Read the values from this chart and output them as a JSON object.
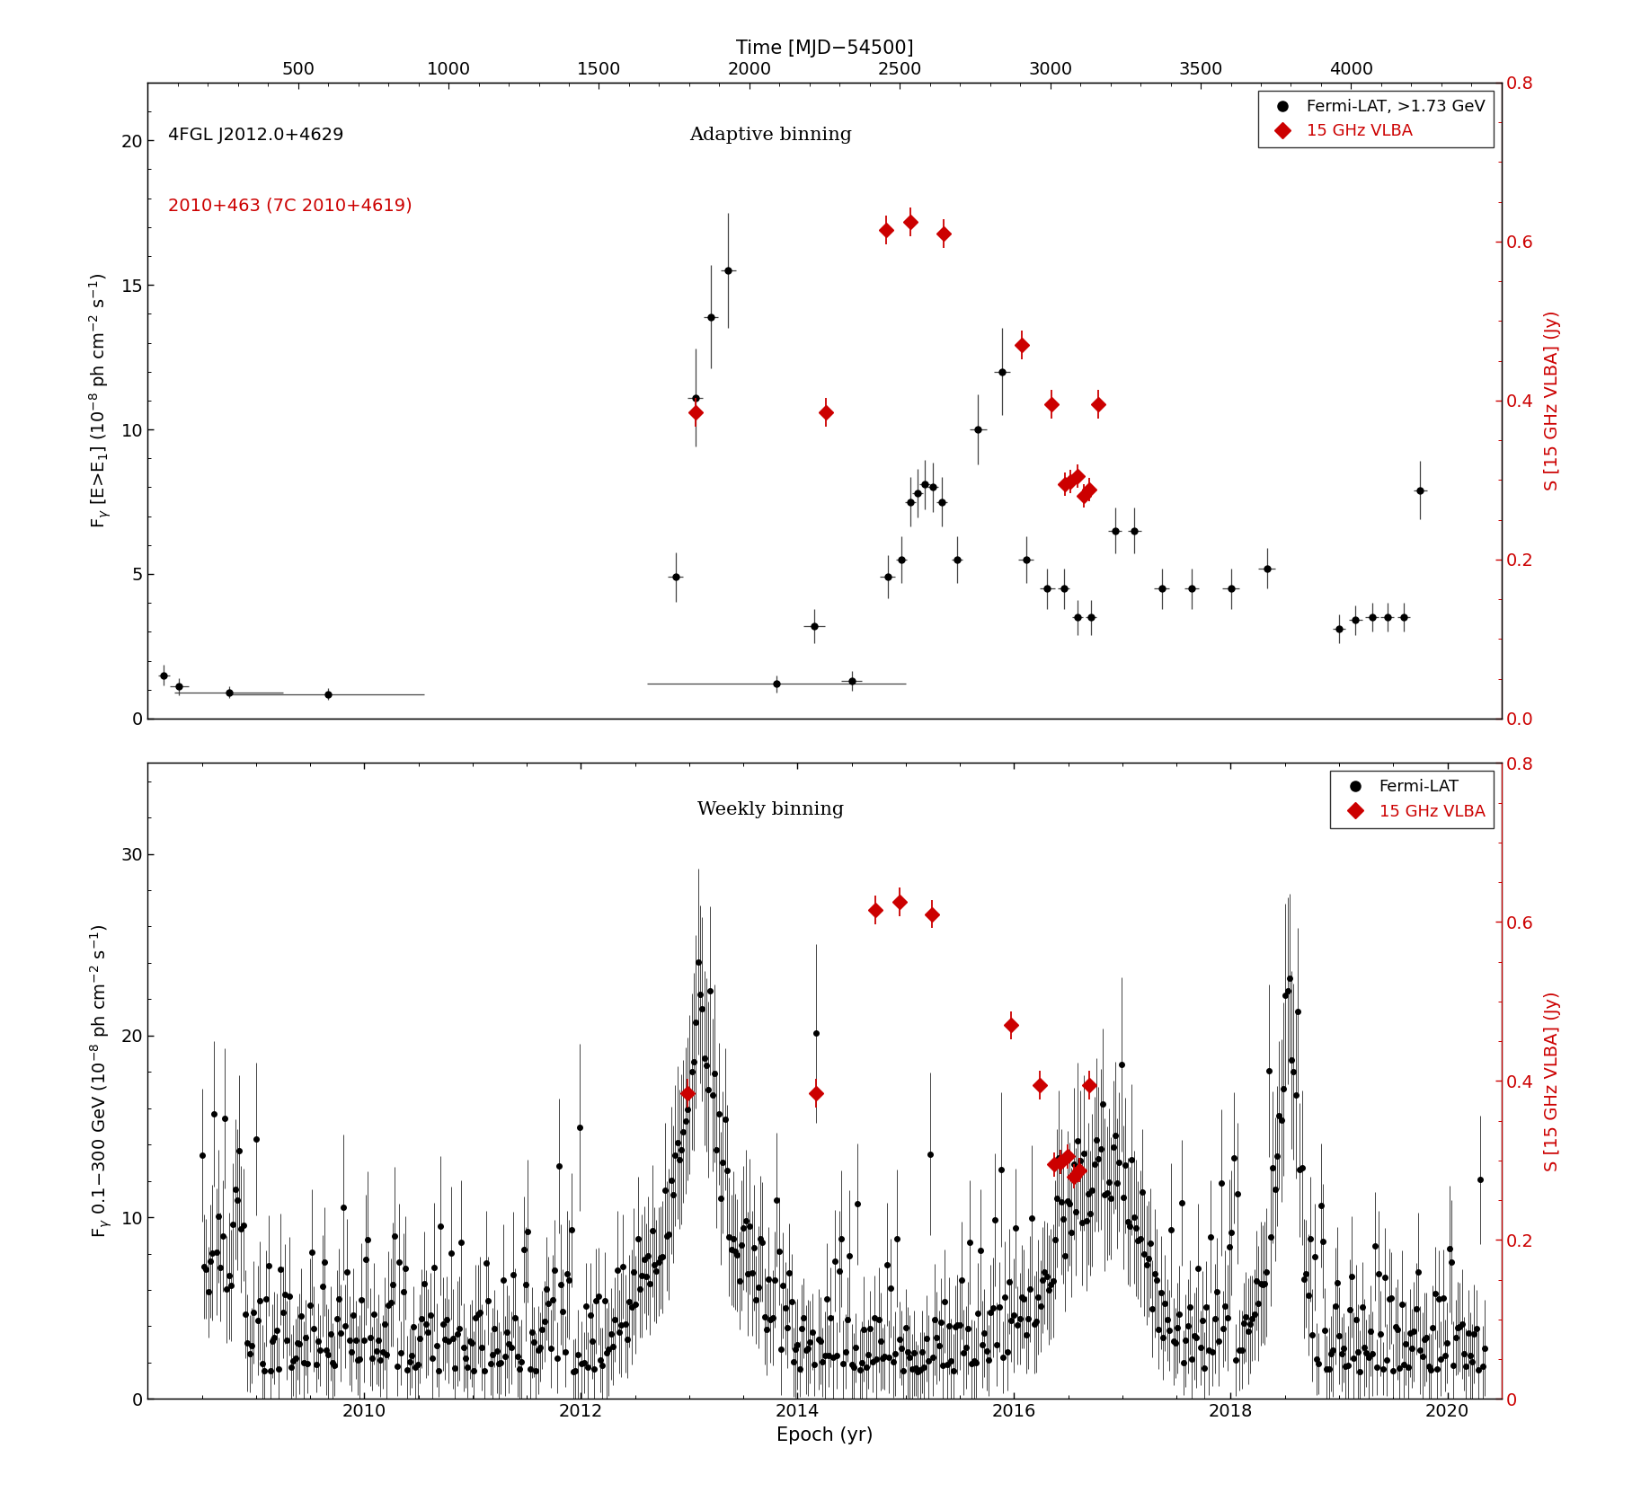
{
  "top_panel": {
    "title_text1": "4FGL J2012.0+4629",
    "title_text2": "2010+463 (7C 2010+4619)",
    "center_label": "Adaptive binning",
    "ylabel_left": "F$_\\gamma$ [E>E$_1$] (10$^{-8}$ ph cm$^{-2}$ s$^{-1}$)",
    "ylabel_right": "S [15 GHz VLBA] (Jy)",
    "ylim_left": [
      0,
      22
    ],
    "ylim_right": [
      0,
      0.8
    ],
    "yticks_left": [
      0,
      5,
      10,
      15,
      20
    ],
    "yticks_right": [
      0.0,
      0.2,
      0.4,
      0.6,
      0.8
    ],
    "xlim_mjd": [
      0,
      4500
    ],
    "xticks_mjd": [
      500,
      1000,
      1500,
      2000,
      2500,
      3000,
      3500,
      4000
    ],
    "fermi_points": [
      [
        54,
        20,
        20,
        1.5,
        0.35
      ],
      [
        105,
        30,
        30,
        1.1,
        0.3
      ],
      [
        270,
        180,
        180,
        0.9,
        0.2
      ],
      [
        600,
        320,
        320,
        0.85,
        0.2
      ],
      [
        1755,
        25,
        25,
        4.9,
        0.85
      ],
      [
        1820,
        25,
        25,
        11.1,
        1.7
      ],
      [
        1872,
        25,
        25,
        13.9,
        1.8
      ],
      [
        1930,
        25,
        25,
        15.5,
        2.0
      ],
      [
        2090,
        430,
        430,
        1.2,
        0.3
      ],
      [
        2215,
        35,
        35,
        3.2,
        0.6
      ],
      [
        2340,
        35,
        35,
        1.3,
        0.35
      ],
      [
        2460,
        25,
        25,
        4.9,
        0.75
      ],
      [
        2505,
        18,
        18,
        5.5,
        0.8
      ],
      [
        2535,
        18,
        18,
        7.5,
        0.85
      ],
      [
        2558,
        18,
        18,
        7.8,
        0.85
      ],
      [
        2582,
        18,
        18,
        8.1,
        0.85
      ],
      [
        2610,
        18,
        18,
        8.0,
        0.85
      ],
      [
        2640,
        18,
        18,
        7.5,
        0.85
      ],
      [
        2690,
        18,
        18,
        5.5,
        0.8
      ],
      [
        2760,
        28,
        28,
        10.0,
        1.2
      ],
      [
        2840,
        28,
        28,
        12.0,
        1.5
      ],
      [
        2920,
        25,
        25,
        5.5,
        0.8
      ],
      [
        2990,
        25,
        25,
        4.5,
        0.7
      ],
      [
        3045,
        20,
        20,
        4.5,
        0.7
      ],
      [
        3090,
        18,
        18,
        3.5,
        0.6
      ],
      [
        3135,
        18,
        18,
        3.5,
        0.6
      ],
      [
        3215,
        22,
        22,
        6.5,
        0.8
      ],
      [
        3280,
        22,
        22,
        6.5,
        0.8
      ],
      [
        3370,
        25,
        25,
        4.5,
        0.7
      ],
      [
        3470,
        25,
        25,
        4.5,
        0.7
      ],
      [
        3600,
        28,
        28,
        4.5,
        0.7
      ],
      [
        3720,
        28,
        28,
        5.2,
        0.7
      ],
      [
        3960,
        22,
        22,
        3.1,
        0.5
      ],
      [
        4015,
        22,
        22,
        3.4,
        0.5
      ],
      [
        4070,
        22,
        22,
        3.5,
        0.5
      ],
      [
        4120,
        22,
        22,
        3.5,
        0.5
      ],
      [
        4175,
        22,
        22,
        3.5,
        0.5
      ],
      [
        4230,
        22,
        22,
        7.9,
        1.0
      ]
    ],
    "vlba_points": [
      [
        1820,
        0.385,
        0.018
      ],
      [
        2255,
        0.385,
        0.018
      ],
      [
        2455,
        0.615,
        0.018
      ],
      [
        2535,
        0.625,
        0.018
      ],
      [
        2645,
        0.61,
        0.018
      ],
      [
        2905,
        0.47,
        0.018
      ],
      [
        3005,
        0.395,
        0.018
      ],
      [
        3048,
        0.295,
        0.015
      ],
      [
        3068,
        0.298,
        0.015
      ],
      [
        3090,
        0.305,
        0.015
      ],
      [
        3112,
        0.28,
        0.015
      ],
      [
        3130,
        0.288,
        0.015
      ],
      [
        3158,
        0.395,
        0.018
      ]
    ]
  },
  "bottom_panel": {
    "center_label": "Weekly binning",
    "ylabel_left": "F$_\\gamma$ 0.1$-$300 GeV (10$^{-8}$ ph cm$^{-2}$ s$^{-1}$)",
    "ylabel_right": "S [15 GHz VLBA] (Jy)",
    "ylim_left": [
      0,
      35
    ],
    "ylim_right": [
      0,
      0.8
    ],
    "yticks_left": [
      0,
      10,
      20,
      30
    ],
    "yticks_right": [
      0.0,
      0.2,
      0.4,
      0.6,
      0.8
    ],
    "xlabel": "Epoch (yr)",
    "xlim_year": [
      2008.0,
      2020.5
    ],
    "xticks_year": [
      2010,
      2012,
      2014,
      2016,
      2018,
      2020
    ],
    "vlba_points_year": [
      [
        2012.98,
        0.385,
        0.018
      ],
      [
        2014.17,
        0.385,
        0.018
      ],
      [
        2014.72,
        0.615,
        0.018
      ],
      [
        2014.94,
        0.625,
        0.018
      ],
      [
        2015.24,
        0.61,
        0.018
      ],
      [
        2015.97,
        0.47,
        0.018
      ],
      [
        2016.24,
        0.395,
        0.018
      ],
      [
        2016.37,
        0.295,
        0.015
      ],
      [
        2016.43,
        0.298,
        0.015
      ],
      [
        2016.49,
        0.305,
        0.015
      ],
      [
        2016.55,
        0.28,
        0.015
      ],
      [
        2016.6,
        0.288,
        0.015
      ],
      [
        2016.69,
        0.395,
        0.018
      ]
    ]
  },
  "top_axis": {
    "xlabel": "Time [MJD−54500]"
  },
  "legend1": {
    "fermi_label": "Fermi-LAT, >1.73 GeV",
    "vlba_label": "15 GHz VLBA"
  },
  "legend2": {
    "fermi_label": "Fermi-LAT",
    "vlba_label": "15 GHz VLBA"
  },
  "colors": {
    "black": "#000000",
    "red": "#cc0000",
    "dark_gray": "#444444",
    "light_gray": "#aaaaaa"
  }
}
